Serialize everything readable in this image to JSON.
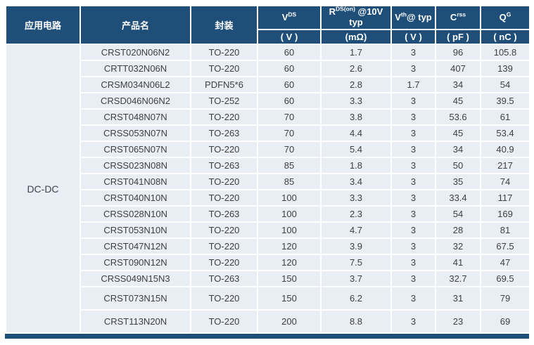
{
  "table": {
    "application_header": "应用电路",
    "application_label": "DC-DC",
    "col_product": "产品名",
    "col_package": "封装",
    "spec_columns": [
      {
        "base": "V",
        "sup": "DS",
        "rest": "",
        "line2": "",
        "unit": "( V )"
      },
      {
        "base": "R",
        "sup": "DS(on)",
        "rest": " @10V",
        "line2": "typ",
        "unit": "(mΩ)"
      },
      {
        "base": "V",
        "sup": "th",
        "rest": "@ typ",
        "line2": "",
        "unit": "( V )"
      },
      {
        "base": "C",
        "sup": "rss",
        "rest": "",
        "line2": "",
        "unit": "( pF )"
      },
      {
        "base": "Q",
        "sup": "G",
        "rest": "",
        "line2": "",
        "unit": "( nC )"
      }
    ],
    "rows": [
      [
        "CRST020N06N2",
        "TO-220",
        "60",
        "1.7",
        "3",
        "96",
        "105.8"
      ],
      [
        "CRTT032N06N",
        "TO-220",
        "60",
        "2.6",
        "3",
        "407",
        "139"
      ],
      [
        "CRSM034N06L2",
        "PDFN5*6",
        "60",
        "2.8",
        "1.7",
        "34",
        "54"
      ],
      [
        "CRSD046N06N2",
        "TO-252",
        "60",
        "3.3",
        "3",
        "45",
        "39.5"
      ],
      [
        "CRST048N07N",
        "TO-220",
        "70",
        "3.8",
        "3",
        "53.6",
        "61"
      ],
      [
        "CRSS053N07N",
        "TO-263",
        "70",
        "4.4",
        "3",
        "45",
        "53.4"
      ],
      [
        "CRST065N07N",
        "TO-220",
        "70",
        "5.4",
        "3",
        "34",
        "40.9"
      ],
      [
        "CRSS023N08N",
        "TO-263",
        "85",
        "1.8",
        "3",
        "50",
        "217"
      ],
      [
        "CRST041N08N",
        "TO-220",
        "85",
        "3.4",
        "3",
        "35",
        "74"
      ],
      [
        "CRST040N10N",
        "TO-220",
        "100",
        "3.3",
        "3",
        "33.4",
        "117"
      ],
      [
        "CRSS028N10N",
        "TO-263",
        "100",
        "2.3",
        "3",
        "54",
        "169"
      ],
      [
        "CRST053N10N",
        "TO-220",
        "100",
        "4.7",
        "3",
        "28",
        "81"
      ],
      [
        "CRST047N12N",
        "TO-220",
        "120",
        "3.9",
        "3",
        "32",
        "67.5"
      ],
      [
        "CRST090N12N",
        "TO-220",
        "120",
        "7.5",
        "3",
        "41",
        "47"
      ],
      [
        "CRSS049N15N3",
        "TO-263",
        "150",
        "3.7",
        "3",
        "32.7",
        "69.5"
      ],
      [
        "CRST073N15N",
        "TO-220",
        "150",
        "6.2",
        "3",
        "31",
        "79"
      ],
      [
        "CRST113N20N",
        "TO-220",
        "200",
        "8.8",
        "3",
        "23",
        "69"
      ]
    ]
  },
  "colors": {
    "header_bg": "#1F4E79",
    "row_bg": "#E9EDF4",
    "grid_line": "#FFFFFF",
    "header_text": "#FFFFFF",
    "cell_text": "#404040"
  }
}
